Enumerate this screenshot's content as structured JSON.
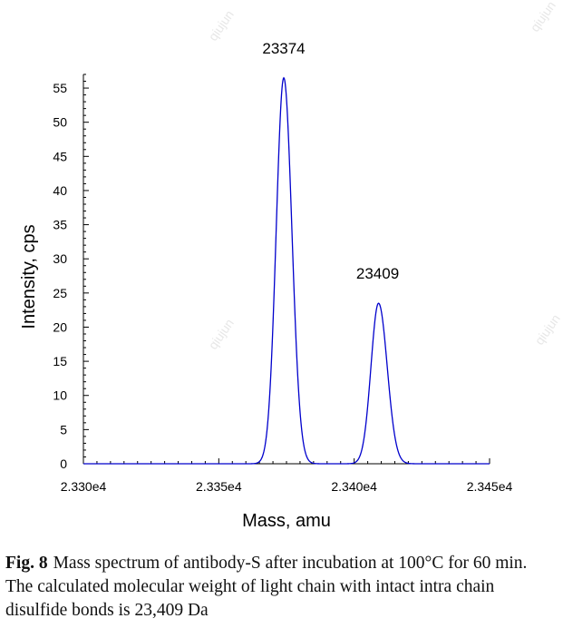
{
  "chart_data": {
    "type": "line",
    "xlabel": "Mass, amu",
    "ylabel": "Intensity, cps",
    "xlim": [
      23300,
      23450
    ],
    "ylim": [
      0,
      57
    ],
    "x_ticks": [
      23300,
      23350,
      23400,
      23450
    ],
    "x_tick_labels": [
      "2.330e4",
      "2.335e4",
      "2.340e4",
      "2.345e4"
    ],
    "y_ticks": [
      0,
      5,
      10,
      15,
      20,
      25,
      30,
      35,
      40,
      45,
      50,
      55
    ],
    "y_tick_labels": [
      "0",
      "5",
      "10",
      "15",
      "20",
      "25",
      "30",
      "35",
      "40",
      "45",
      "50",
      "55"
    ],
    "grid": false,
    "series": [
      {
        "color": "#0000cc",
        "peaks": [
          {
            "center": 23374,
            "height": 56.5,
            "sigma_left": 2.8,
            "sigma_right": 3.0
          },
          {
            "center": 23409,
            "height": 23.5,
            "sigma_left": 2.8,
            "sigma_right": 3.2
          }
        ]
      }
    ],
    "annotations": [
      {
        "text": "23374",
        "x": 23374,
        "y": 56.5
      },
      {
        "text": "23409",
        "x": 23409,
        "y": 23.5
      }
    ]
  },
  "caption": {
    "label": "Fig. 8",
    "text": "Mass spectrum of antibody-S after incubation at 100°C for 60 min. The calculated molecular weight of light chain with intact intra chain disulfide bonds is 23,409 Da"
  },
  "watermark": "qiujun"
}
